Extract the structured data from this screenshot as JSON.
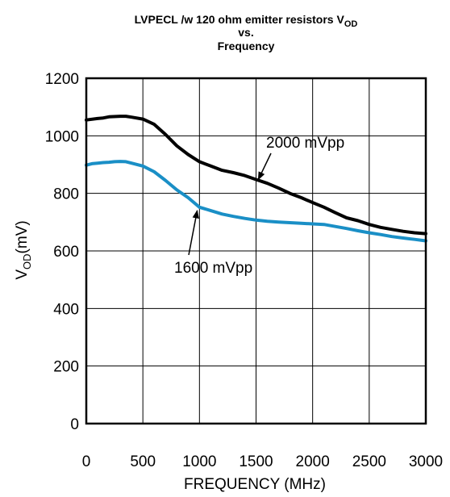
{
  "chart_data": {
    "type": "line",
    "title": {
      "line1_main": "LVPECL /w 120 ohm emitter resistors V",
      "line1_sub": "OD",
      "line2": "vs.",
      "line3": "Frequency"
    },
    "xlabel": "FREQUENCY (MHz)",
    "ylabel": {
      "main": "V",
      "sub": "OD",
      "rest": "(mV)"
    },
    "xlim": [
      0,
      3000
    ],
    "ylim": [
      0,
      1200
    ],
    "x_ticks": [
      "0",
      "500",
      "1000",
      "1500",
      "2000",
      "2500",
      "3000"
    ],
    "y_ticks": [
      "0",
      "200",
      "400",
      "600",
      "800",
      "1000",
      "1200"
    ],
    "grid": true,
    "colors": {
      "2000 mVpp": "#000000",
      "1600 mVpp": "#1a8fc6"
    },
    "series": [
      {
        "name": "2000 mVpp",
        "x": [
          0,
          100,
          150,
          200,
          300,
          350,
          400,
          500,
          600,
          700,
          800,
          900,
          1000,
          1100,
          1200,
          1300,
          1400,
          1500,
          1600,
          1700,
          1800,
          1900,
          2000,
          2100,
          2200,
          2300,
          2400,
          2500,
          2600,
          2700,
          2800,
          2900,
          3000
        ],
        "y": [
          1055,
          1060,
          1062,
          1066,
          1068,
          1068,
          1065,
          1058,
          1040,
          1005,
          965,
          935,
          910,
          895,
          880,
          872,
          862,
          848,
          835,
          818,
          800,
          785,
          768,
          752,
          733,
          715,
          705,
          692,
          682,
          675,
          668,
          663,
          660
        ]
      },
      {
        "name": "1600 mVpp",
        "x": [
          0,
          50,
          100,
          150,
          200,
          250,
          300,
          350,
          400,
          500,
          600,
          700,
          800,
          900,
          1000,
          1100,
          1200,
          1300,
          1400,
          1500,
          1600,
          1700,
          1800,
          1900,
          2000,
          2100,
          2200,
          2300,
          2400,
          2500,
          2600,
          2700,
          2800,
          2900,
          3000
        ],
        "y": [
          898,
          903,
          905,
          907,
          908,
          910,
          911,
          910,
          905,
          895,
          875,
          845,
          812,
          785,
          752,
          740,
          728,
          720,
          713,
          707,
          703,
          700,
          698,
          696,
          694,
          692,
          685,
          678,
          670,
          663,
          657,
          650,
          645,
          640,
          635
        ]
      }
    ],
    "annotations": [
      {
        "text": "2000 mVpp",
        "series": "2000 mVpp",
        "x": 1520,
        "y": 848
      },
      {
        "text": "1600 mVpp",
        "series": "1600 mVpp",
        "x": 980,
        "y": 740
      }
    ]
  }
}
